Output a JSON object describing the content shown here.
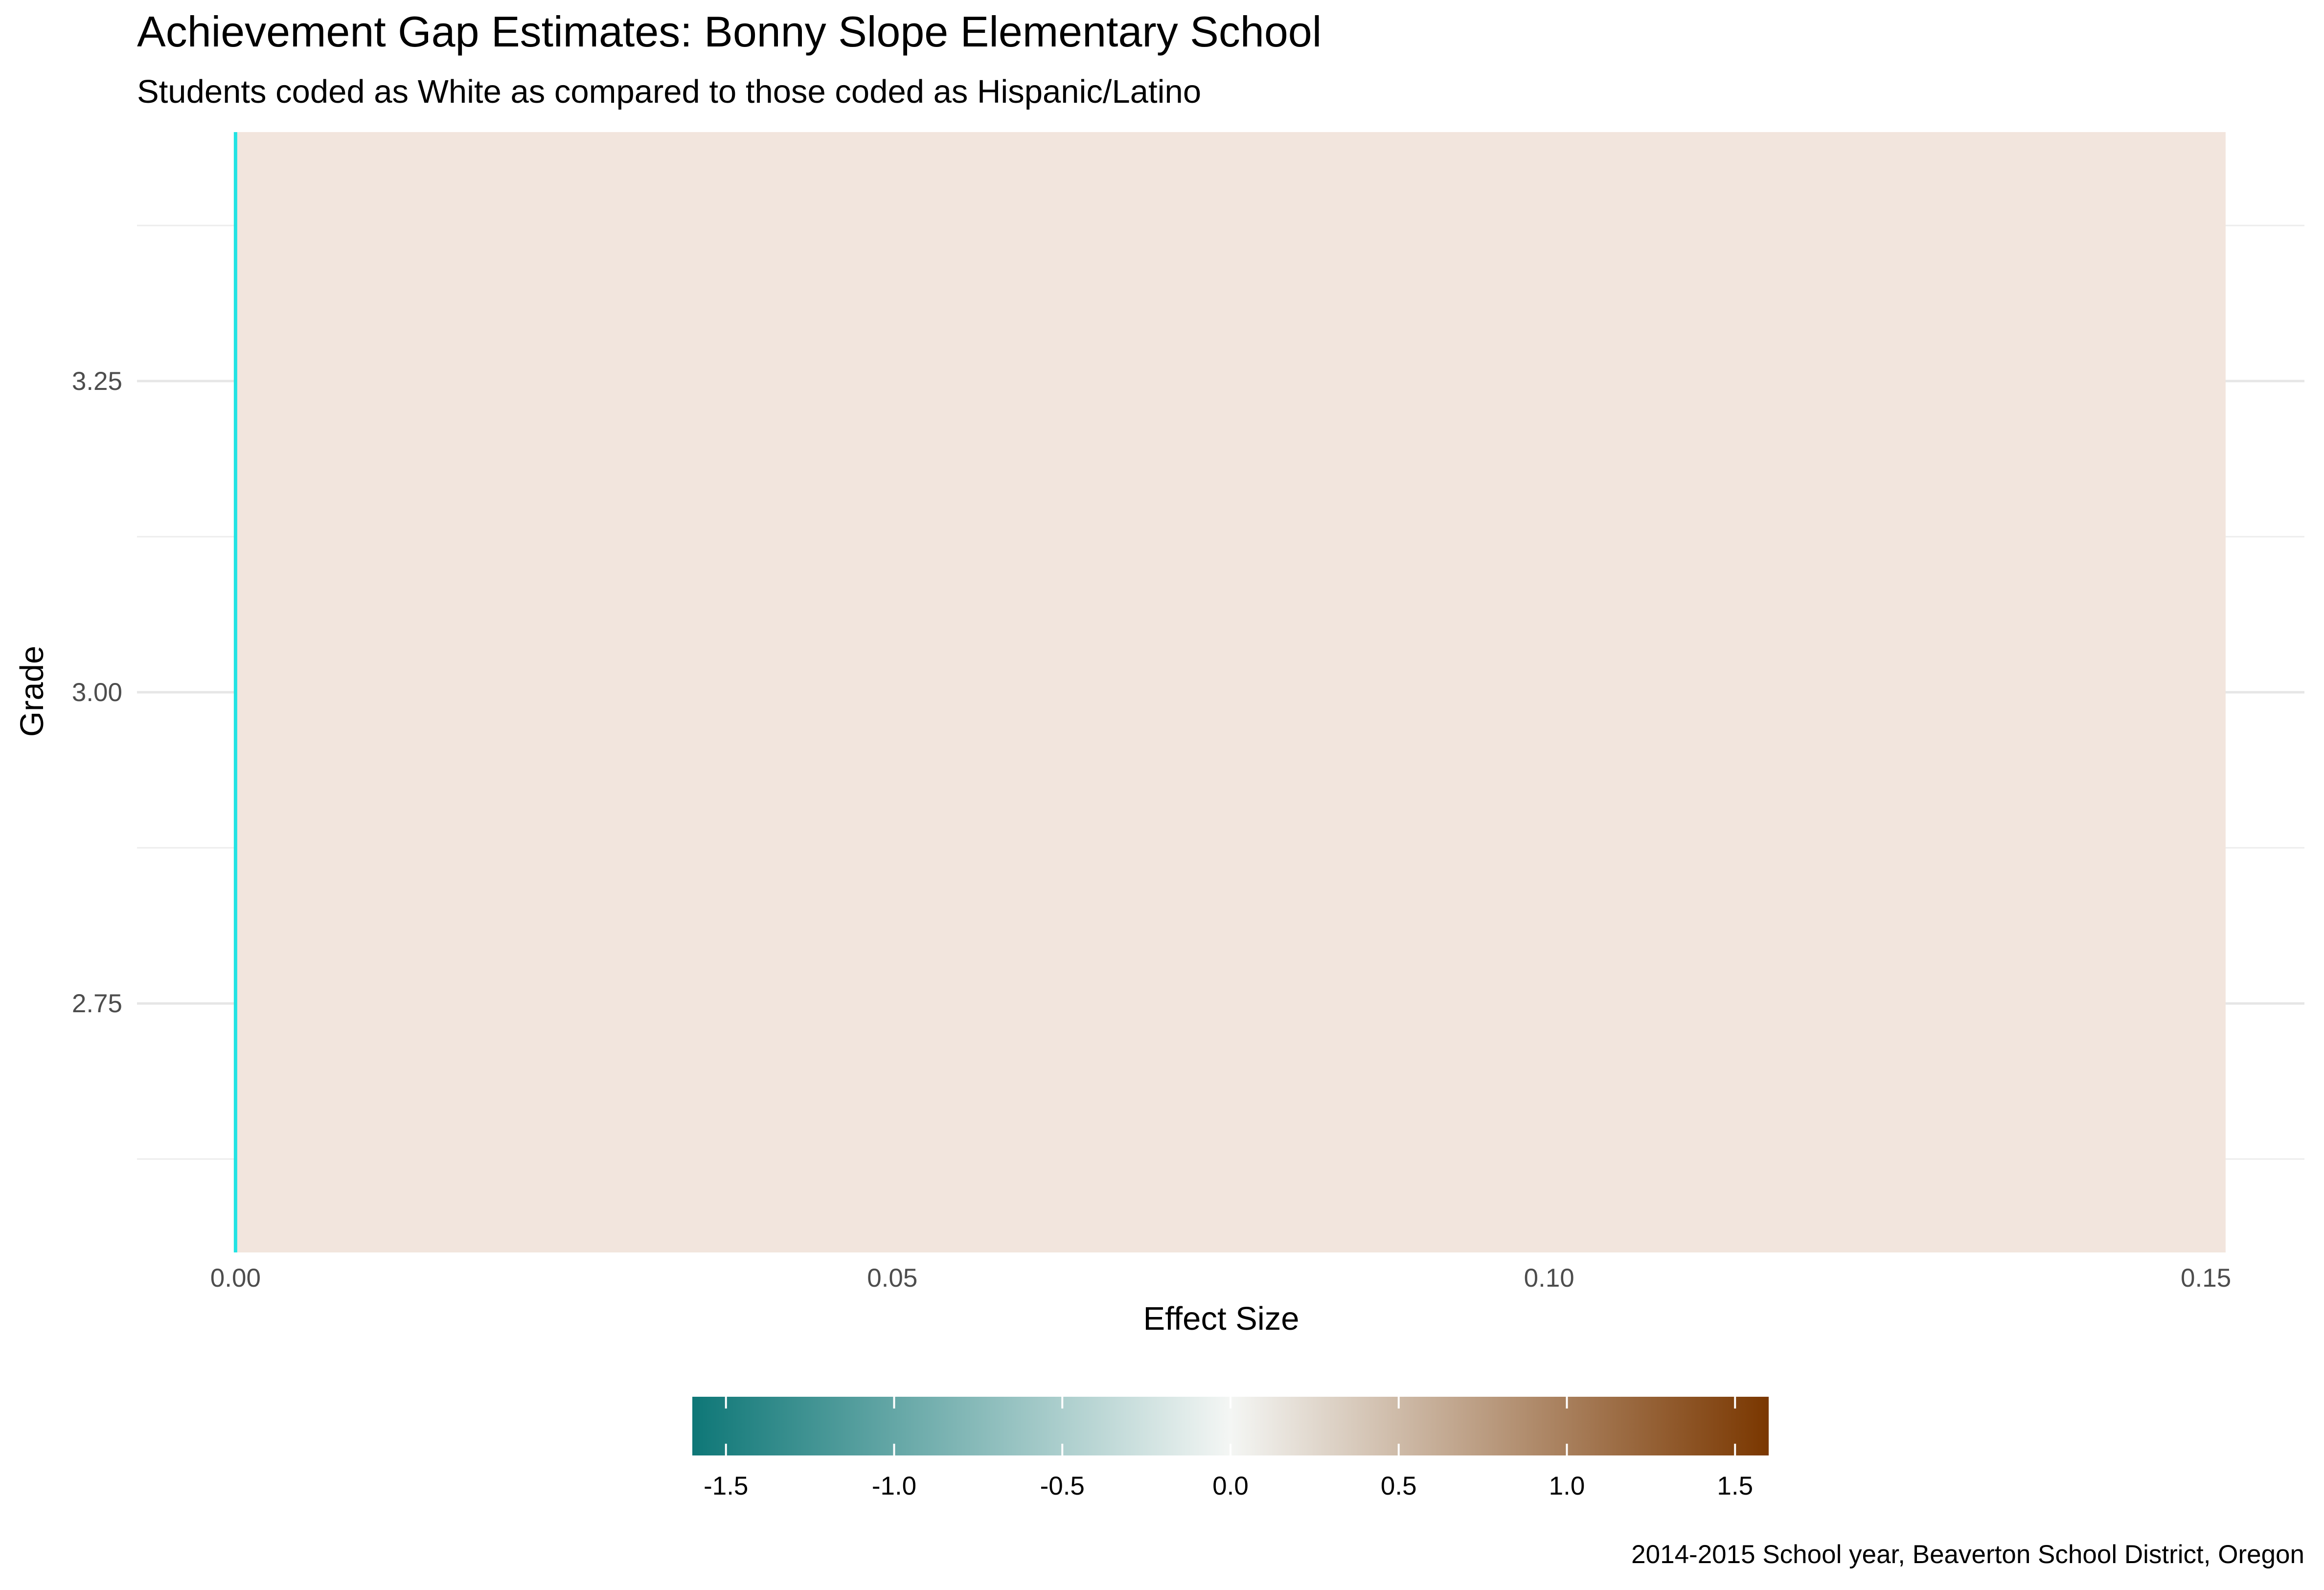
{
  "chart_data": {
    "type": "bar",
    "orientation": "horizontal",
    "title": "Achievement Gap Estimates: Bonny Slope Elementary School",
    "subtitle": "Students coded as White as compared to those coded as Hispanic/Latino",
    "xlabel": "Effect Size",
    "ylabel": "Grade",
    "caption": "2014-2015 School year, Beaverton School District, Oregon",
    "xlim": [
      -0.0075,
      0.1575
    ],
    "ylim": [
      2.55,
      3.45
    ],
    "x_ticks": [
      "0.00",
      "0.05",
      "0.10",
      "0.15"
    ],
    "x_tick_values": [
      0,
      0.05,
      0.1,
      0.15
    ],
    "y_ticks": [
      "2.75",
      "3.00",
      "3.25"
    ],
    "y_tick_values": [
      2.75,
      3.0,
      3.25
    ],
    "grid": true,
    "data": [
      {
        "grade": 3,
        "effect_size": 0.1515,
        "color": "#f2e5dd"
      }
    ],
    "reference_line": {
      "x": 0,
      "color": "#22e3e3"
    },
    "legend": {
      "type": "colorbar",
      "position": "bottom",
      "range": [
        -1.6,
        1.6
      ],
      "ticks": [
        "-1.5",
        "-1.0",
        "-0.5",
        "0.0",
        "0.5",
        "1.0",
        "1.5"
      ],
      "tick_values": [
        -1.5,
        -1.0,
        -0.5,
        0.0,
        0.5,
        1.0,
        1.5
      ],
      "colors": [
        "#0e7777",
        "#f4f6f4",
        "#7a3700"
      ]
    }
  }
}
